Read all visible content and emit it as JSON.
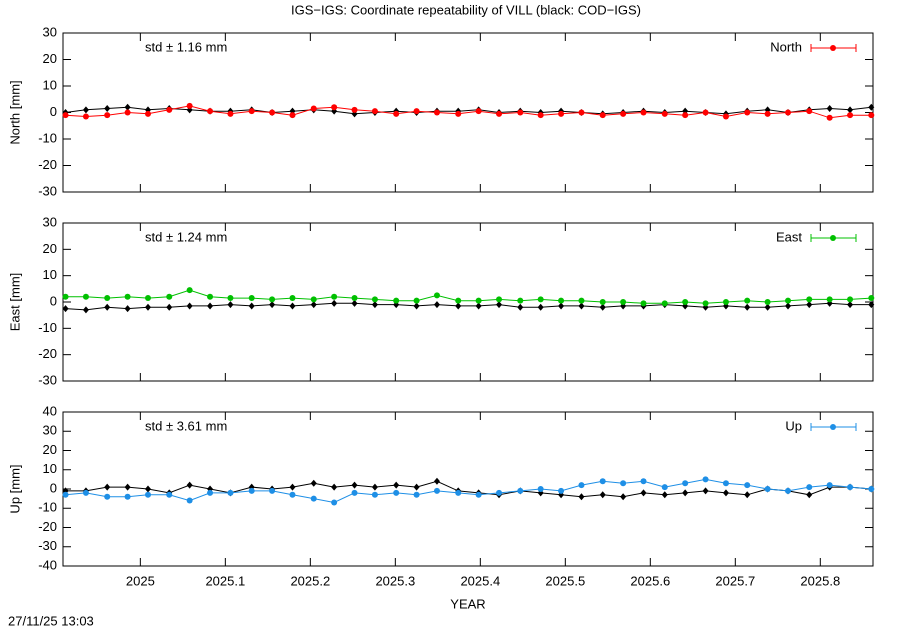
{
  "title": "IGS−IGS: Coordinate repeatability of VILL (black: COD−IGS)",
  "timestamp": "27/11/25 13:03",
  "xlabel": "YEAR",
  "xlim": [
    2024.909,
    2025.862
  ],
  "xticks": [
    2025,
    2025.1,
    2025.2,
    2025.3,
    2025.4,
    2025.5,
    2025.6,
    2025.7,
    2025.8
  ],
  "chart_data": [
    {
      "type": "line",
      "ylabel": "North [mm]",
      "annotation": "std ± 1.16 mm",
      "ylim": [
        -30,
        30
      ],
      "yticks": [
        -30,
        -20,
        -10,
        0,
        10,
        20,
        30
      ],
      "x": [
        2024.912,
        2024.936,
        2024.961,
        2024.985,
        2025.009,
        2025.034,
        2025.058,
        2025.082,
        2025.106,
        2025.131,
        2025.155,
        2025.179,
        2025.204,
        2025.228,
        2025.252,
        2025.276,
        2025.301,
        2025.325,
        2025.349,
        2025.374,
        2025.398,
        2025.422,
        2025.447,
        2025.471,
        2025.495,
        2025.519,
        2025.544,
        2025.568,
        2025.592,
        2025.617,
        2025.641,
        2025.665,
        2025.689,
        2025.714,
        2025.738,
        2025.762,
        2025.787,
        2025.811,
        2025.835,
        2025.86
      ],
      "series": [
        {
          "name": "North",
          "color": "#ff0000",
          "values": [
            -1,
            -1.5,
            -1,
            0,
            -0.5,
            1,
            2.5,
            0.5,
            -0.5,
            0.5,
            0,
            -1,
            1.5,
            2,
            1,
            0.5,
            -0.5,
            0.5,
            0,
            -0.5,
            0.5,
            -0.5,
            0,
            -1,
            -0.5,
            0,
            -1,
            -0.5,
            0,
            -0.5,
            -1,
            0,
            -1.5,
            0,
            -0.5,
            0,
            0.5,
            -2,
            -1,
            -1
          ]
        },
        {
          "color": "#000000",
          "values": [
            0,
            1,
            1.5,
            2,
            1,
            1.5,
            1,
            0.5,
            0.5,
            1,
            0,
            0.5,
            1,
            0.5,
            -0.5,
            0,
            0.5,
            0,
            0.5,
            0.5,
            1,
            0,
            0.5,
            0,
            0.5,
            0,
            -0.5,
            0,
            0.5,
            0,
            0.5,
            0,
            -0.5,
            0.5,
            1,
            0,
            1,
            1.5,
            1,
            2
          ]
        }
      ]
    },
    {
      "type": "line",
      "ylabel": "East [mm]",
      "annotation": "std ± 1.24 mm",
      "ylim": [
        -30,
        30
      ],
      "yticks": [
        -30,
        -20,
        -10,
        0,
        10,
        20,
        30
      ],
      "x": [
        2024.912,
        2024.936,
        2024.961,
        2024.985,
        2025.009,
        2025.034,
        2025.058,
        2025.082,
        2025.106,
        2025.131,
        2025.155,
        2025.179,
        2025.204,
        2025.228,
        2025.252,
        2025.276,
        2025.301,
        2025.325,
        2025.349,
        2025.374,
        2025.398,
        2025.422,
        2025.447,
        2025.471,
        2025.495,
        2025.519,
        2025.544,
        2025.568,
        2025.592,
        2025.617,
        2025.641,
        2025.665,
        2025.689,
        2025.714,
        2025.738,
        2025.762,
        2025.787,
        2025.811,
        2025.835,
        2025.86
      ],
      "series": [
        {
          "name": "East",
          "color": "#00c000",
          "values": [
            2,
            2,
            1.5,
            2,
            1.5,
            2,
            4.5,
            2,
            1.5,
            1.5,
            1,
            1.5,
            1,
            2,
            1.5,
            1,
            0.5,
            0.5,
            2.5,
            0.5,
            0.5,
            1,
            0.5,
            1,
            0.5,
            0.5,
            0,
            0,
            -0.5,
            -0.5,
            0,
            -0.5,
            0,
            0.5,
            0,
            0.5,
            1,
            1,
            1,
            1.5
          ]
        },
        {
          "color": "#000000",
          "values": [
            -2.5,
            -3,
            -2,
            -2.5,
            -2,
            -2,
            -1.5,
            -1.5,
            -1,
            -1.5,
            -1,
            -1.5,
            -1,
            -0.5,
            -0.5,
            -1,
            -1,
            -1.5,
            -1,
            -1.5,
            -1.5,
            -1,
            -2,
            -2,
            -1.5,
            -1.5,
            -2,
            -1.5,
            -1.5,
            -1,
            -1.5,
            -2,
            -1.5,
            -2,
            -2,
            -1.5,
            -1,
            -0.5,
            -1,
            -1
          ]
        }
      ]
    },
    {
      "type": "line",
      "ylabel": "Up [mm]",
      "annotation": "std ± 3.61 mm",
      "ylim": [
        -40,
        40
      ],
      "yticks": [
        -40,
        -30,
        -20,
        -10,
        0,
        10,
        20,
        30,
        40
      ],
      "x": [
        2024.912,
        2024.936,
        2024.961,
        2024.985,
        2025.009,
        2025.034,
        2025.058,
        2025.082,
        2025.106,
        2025.131,
        2025.155,
        2025.179,
        2025.204,
        2025.228,
        2025.252,
        2025.276,
        2025.301,
        2025.325,
        2025.349,
        2025.374,
        2025.398,
        2025.422,
        2025.447,
        2025.471,
        2025.495,
        2025.519,
        2025.544,
        2025.568,
        2025.592,
        2025.617,
        2025.641,
        2025.665,
        2025.689,
        2025.714,
        2025.738,
        2025.762,
        2025.787,
        2025.811,
        2025.835,
        2025.86
      ],
      "series": [
        {
          "name": "Up",
          "color": "#1e8fe6",
          "values": [
            -3,
            -2,
            -4,
            -4,
            -3,
            -3,
            -6,
            -2,
            -2,
            -1,
            -1,
            -3,
            -5,
            -7,
            -2,
            -3,
            -2,
            -3,
            -1,
            -2,
            -3,
            -2,
            -1,
            0,
            -1,
            2,
            4,
            3,
            4,
            1,
            3,
            5,
            3,
            2,
            0,
            -1,
            1,
            2,
            1,
            0
          ]
        },
        {
          "color": "#000000",
          "values": [
            -1,
            -1,
            1,
            1,
            0,
            -2,
            2,
            0,
            -2,
            1,
            0,
            1,
            3,
            1,
            2,
            1,
            2,
            1,
            4,
            -1,
            -2,
            -3,
            -1,
            -2,
            -3,
            -4,
            -3,
            -4,
            -2,
            -3,
            -2,
            -1,
            -2,
            -3,
            0,
            -1,
            -3,
            1,
            1,
            0
          ]
        }
      ]
    }
  ]
}
